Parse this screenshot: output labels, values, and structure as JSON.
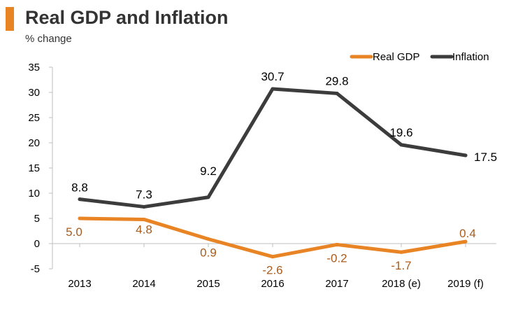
{
  "title": "Real GDP and Inflation",
  "subtitle": "% change",
  "colors": {
    "accent": "#E98425",
    "gdp": "#E98425",
    "gdp_label": "#A85C1E",
    "inflation": "#3C3C3C",
    "axis": "#BFBFBF"
  },
  "chart_data": {
    "type": "line",
    "title": "Real GDP and Inflation",
    "ylabel": "% change",
    "xlabel": "",
    "categories": [
      "2013",
      "2014",
      "2015",
      "2016",
      "2017",
      "2018 (e)",
      "2019 (f)"
    ],
    "yticks": [
      "35",
      "30",
      "25",
      "20",
      "15",
      "10",
      "5",
      "0",
      "-5"
    ],
    "ylim": [
      -5,
      35
    ],
    "grid": false,
    "legend": "top-right",
    "series": [
      {
        "name": "Real GDP",
        "values": [
          5.0,
          4.8,
          0.9,
          -2.6,
          -0.2,
          -1.7,
          0.4
        ],
        "labels": [
          "5.0",
          "4.8",
          "0.9",
          "-2.6",
          "-0.2",
          "-1.7",
          "0.4"
        ]
      },
      {
        "name": "Inflation",
        "values": [
          8.8,
          7.3,
          9.2,
          30.7,
          29.8,
          19.6,
          17.5
        ],
        "labels": [
          "8.8",
          "7.3",
          "9.2",
          "30.7",
          "29.8",
          "19.6",
          "17.5"
        ]
      }
    ]
  }
}
